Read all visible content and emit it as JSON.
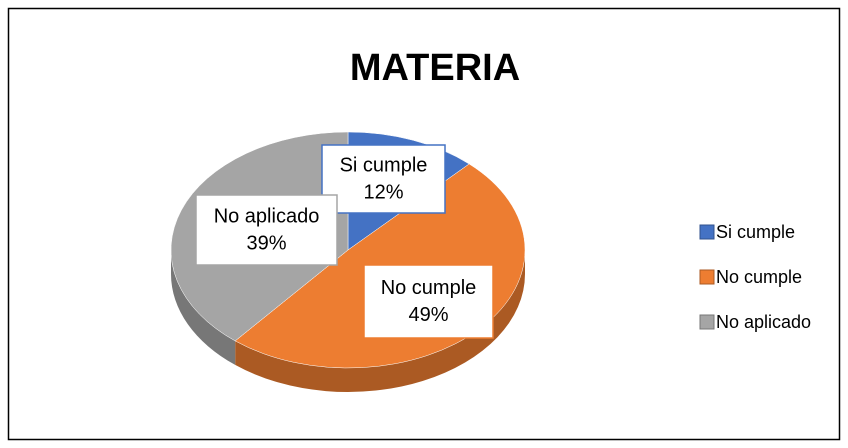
{
  "chart_data": {
    "type": "pie",
    "title": "MATERIA",
    "categories": [
      "Si cumple",
      "No cumple",
      "No aplicado"
    ],
    "values": [
      12,
      49,
      39
    ],
    "value_labels": [
      "12%",
      "49%",
      "39%"
    ],
    "colors": [
      "#4472c4",
      "#ed7d31",
      "#a5a5a5"
    ],
    "legend": "right"
  }
}
